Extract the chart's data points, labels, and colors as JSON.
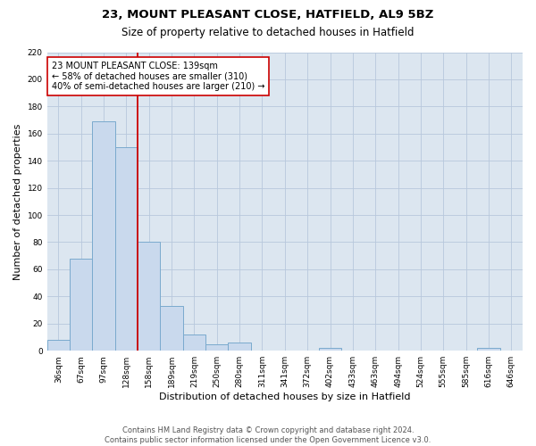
{
  "title_line1": "23, MOUNT PLEASANT CLOSE, HATFIELD, AL9 5BZ",
  "title_line2": "Size of property relative to detached houses in Hatfield",
  "xlabel": "Distribution of detached houses by size in Hatfield",
  "ylabel": "Number of detached properties",
  "bar_labels": [
    "36sqm",
    "67sqm",
    "97sqm",
    "128sqm",
    "158sqm",
    "189sqm",
    "219sqm",
    "250sqm",
    "280sqm",
    "311sqm",
    "341sqm",
    "372sqm",
    "402sqm",
    "433sqm",
    "463sqm",
    "494sqm",
    "524sqm",
    "555sqm",
    "585sqm",
    "616sqm",
    "646sqm"
  ],
  "bar_values": [
    8,
    68,
    169,
    150,
    80,
    33,
    12,
    5,
    6,
    0,
    0,
    0,
    2,
    0,
    0,
    0,
    0,
    0,
    0,
    2,
    0
  ],
  "bar_color": "#c9d9ed",
  "bar_edge_color": "#7aaace",
  "vline_x": 3.5,
  "vline_color": "#cc0000",
  "annotation_text": "23 MOUNT PLEASANT CLOSE: 139sqm\n← 58% of detached houses are smaller (310)\n40% of semi-detached houses are larger (210) →",
  "annotation_box_color": "#ffffff",
  "annotation_box_edge": "#cc0000",
  "ylim": [
    0,
    220
  ],
  "yticks": [
    0,
    20,
    40,
    60,
    80,
    100,
    120,
    140,
    160,
    180,
    200,
    220
  ],
  "footer_line1": "Contains HM Land Registry data © Crown copyright and database right 2024.",
  "footer_line2": "Contains public sector information licensed under the Open Government Licence v3.0.",
  "bg_color": "#ffffff",
  "plot_bg_color": "#dce6f0",
  "grid_color": "#b8c8dc",
  "title_fontsize": 9.5,
  "subtitle_fontsize": 8.5,
  "axis_label_fontsize": 8,
  "tick_fontsize": 6.5,
  "annotation_fontsize": 7,
  "footer_fontsize": 6
}
